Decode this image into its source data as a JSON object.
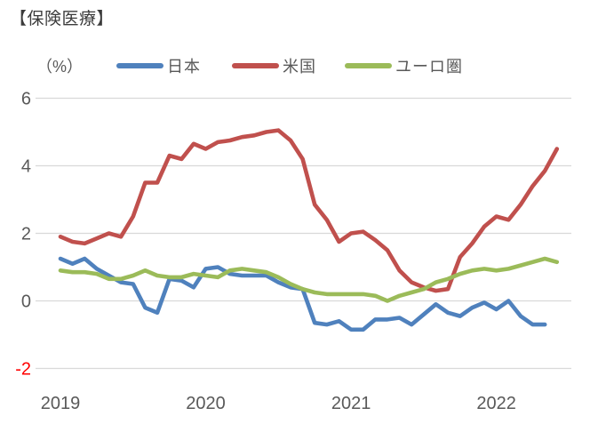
{
  "page": {
    "title": "【保険医療】",
    "unit_label": "（%）"
  },
  "legend": {
    "items": [
      {
        "label": "日本"
      },
      {
        "label": "米国"
      },
      {
        "label": "ユーロ圏"
      }
    ]
  },
  "colors": {
    "japan": "#4F81BD",
    "us": "#C0504D",
    "euro": "#9BBB59",
    "gridline": "#D9D9D9",
    "axis_text": "#595959",
    "negative_tick": "#FF0000",
    "title_text": "#3B3B3B"
  },
  "chart_data": {
    "type": "line",
    "title": "【保険医療】",
    "ylabel": "（%）",
    "ylim": [
      -2,
      6
    ],
    "grid": "horizontal",
    "legend_position": "top",
    "y_ticks": [
      {
        "value": 6,
        "label": "6",
        "color": "#595959"
      },
      {
        "value": 4,
        "label": "4",
        "color": "#595959"
      },
      {
        "value": 2,
        "label": "2",
        "color": "#595959"
      },
      {
        "value": 0,
        "label": "0",
        "color": "#595959"
      },
      {
        "value": -2,
        "label": "-2",
        "color": "#FF0000"
      }
    ],
    "x_year_labels": [
      {
        "label": "2019",
        "month_index": 0
      },
      {
        "label": "2020",
        "month_index": 12
      },
      {
        "label": "2021",
        "month_index": 24
      },
      {
        "label": "2022",
        "month_index": 36
      }
    ],
    "x": [
      "2019-01",
      "2019-02",
      "2019-03",
      "2019-04",
      "2019-05",
      "2019-06",
      "2019-07",
      "2019-08",
      "2019-09",
      "2019-10",
      "2019-11",
      "2019-12",
      "2020-01",
      "2020-02",
      "2020-03",
      "2020-04",
      "2020-05",
      "2020-06",
      "2020-07",
      "2020-08",
      "2020-09",
      "2020-10",
      "2020-11",
      "2020-12",
      "2021-01",
      "2021-02",
      "2021-03",
      "2021-04",
      "2021-05",
      "2021-06",
      "2021-07",
      "2021-08",
      "2021-09",
      "2021-10",
      "2021-11",
      "2021-12",
      "2022-01",
      "2022-02",
      "2022-03",
      "2022-04",
      "2022-05",
      "2022-06"
    ],
    "series": [
      {
        "name": "日本",
        "color": "#4F81BD",
        "values": [
          1.25,
          1.1,
          1.25,
          0.95,
          0.75,
          0.55,
          0.5,
          -0.2,
          -0.35,
          0.65,
          0.6,
          0.4,
          0.95,
          1.0,
          0.8,
          0.75,
          0.75,
          0.75,
          0.55,
          0.4,
          0.35,
          -0.65,
          -0.7,
          -0.6,
          -0.85,
          -0.85,
          -0.55,
          -0.55,
          -0.5,
          -0.7,
          -0.4,
          -0.1,
          -0.35,
          -0.45,
          -0.2,
          -0.05,
          -0.25,
          0.0,
          -0.45,
          -0.7,
          -0.7,
          null
        ]
      },
      {
        "name": "米国",
        "color": "#C0504D",
        "values": [
          1.9,
          1.75,
          1.7,
          1.85,
          2.0,
          1.9,
          2.5,
          3.5,
          3.5,
          4.3,
          4.2,
          4.65,
          4.5,
          4.7,
          4.75,
          4.85,
          4.9,
          5.0,
          5.05,
          4.75,
          4.2,
          2.85,
          2.4,
          1.75,
          2.0,
          2.05,
          1.8,
          1.5,
          0.9,
          0.55,
          0.4,
          0.3,
          0.35,
          1.3,
          1.7,
          2.2,
          2.5,
          2.4,
          2.85,
          3.4,
          3.85,
          4.5
        ]
      },
      {
        "name": "ユーロ圏",
        "color": "#9BBB59",
        "values": [
          0.9,
          0.85,
          0.85,
          0.8,
          0.65,
          0.65,
          0.75,
          0.9,
          0.75,
          0.7,
          0.7,
          0.8,
          0.75,
          0.7,
          0.9,
          0.95,
          0.9,
          0.85,
          0.7,
          0.5,
          0.35,
          0.25,
          0.2,
          0.2,
          0.2,
          0.2,
          0.15,
          0.0,
          0.15,
          0.25,
          0.35,
          0.55,
          0.65,
          0.8,
          0.9,
          0.95,
          0.9,
          0.95,
          1.05,
          1.15,
          1.25,
          1.15
        ]
      }
    ]
  }
}
